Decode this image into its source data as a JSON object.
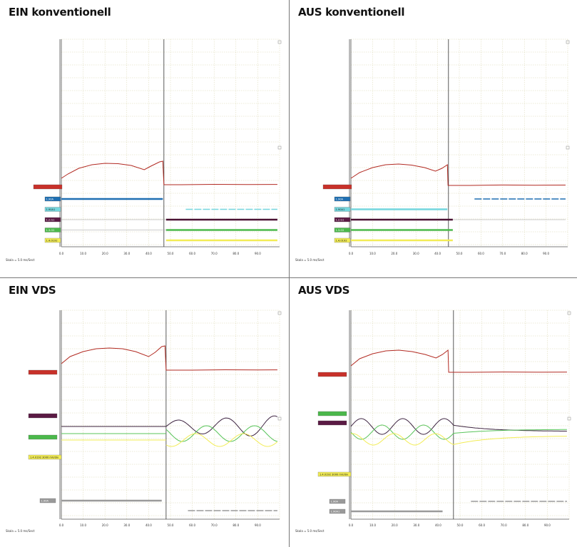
{
  "chart_data": [
    {
      "type": "line",
      "title": "EIN konventionell",
      "scale_note": "Skala = 5.0 ms/Sect",
      "x_ticks": [
        "0.0",
        "10.0",
        "20.0",
        "30.0",
        "40.0",
        "50.0",
        "60.0",
        "70.0",
        "80.0",
        "90.0"
      ],
      "analog": {
        "label": "",
        "color": "#b22a22",
        "labelColor": "#c8312a",
        "points": [
          [
            0,
            12
          ],
          [
            3,
            18
          ],
          [
            8,
            26
          ],
          [
            14,
            31
          ],
          [
            20,
            33
          ],
          [
            26,
            32.5
          ],
          [
            32,
            30
          ],
          [
            38,
            24
          ],
          [
            41,
            29
          ],
          [
            45,
            35
          ],
          [
            46.5,
            36
          ],
          [
            47,
            3
          ],
          [
            55,
            3
          ],
          [
            70,
            3.5
          ],
          [
            85,
            3.2
          ],
          [
            99,
            3.4
          ]
        ]
      },
      "traces": [
        {
          "label": "1.90A",
          "color": "#1f6fb2",
          "labelColor": "#1f6fb2",
          "segments": [
            [
              0,
              46.5
            ]
          ],
          "style": "solid"
        },
        {
          "label": "1.90A1",
          "color": "#74d6dd",
          "labelColor": "#74d6dd",
          "segments": [
            [
              57,
              99
            ]
          ],
          "style": "dashed"
        },
        {
          "label": "1.2.G1",
          "color": "#4a1233",
          "labelColor": "#5a1a44",
          "segments": [
            [
              48,
              99
            ]
          ],
          "style": "solid",
          "prefix": [
            0,
            48
          ]
        },
        {
          "label": "1.3.G2",
          "color": "#4bb84b",
          "labelColor": "#4bb84b",
          "segments": [
            [
              48,
              99
            ]
          ],
          "style": "solid",
          "prefix": [
            0,
            48
          ]
        },
        {
          "label": "1.4.0192",
          "color": "#f2ec55",
          "labelColor": "#f2ec55",
          "segments": [
            [
              48,
              99
            ]
          ],
          "style": "solid"
        }
      ],
      "cursor_x": 47
    },
    {
      "type": "line",
      "title": "AUS konventionell",
      "scale_note": "Skala = 5.0 ms/Sect",
      "x_ticks": [
        "0.0",
        "10.0",
        "20.0",
        "30.0",
        "40.0",
        "50.0",
        "60.0",
        "70.0",
        "80.0",
        "90.0"
      ],
      "analog": {
        "label": "",
        "color": "#b22a22",
        "labelColor": "#c8312a",
        "points": [
          [
            0,
            12
          ],
          [
            4,
            20
          ],
          [
            10,
            27
          ],
          [
            16,
            31
          ],
          [
            22,
            32
          ],
          [
            28,
            30.5
          ],
          [
            34,
            27
          ],
          [
            39,
            22
          ],
          [
            42,
            26
          ],
          [
            44.5,
            31
          ],
          [
            44.8,
            2
          ],
          [
            55,
            2
          ],
          [
            70,
            2.6
          ],
          [
            85,
            2.3
          ],
          [
            99,
            2.5
          ]
        ]
      },
      "traces": [
        {
          "label": "1.90A",
          "color": "#1f6fb2",
          "labelColor": "#1f6fb2",
          "segments": [
            [
              57,
              99
            ]
          ],
          "style": "dashed"
        },
        {
          "label": "1.90A1",
          "color": "#74d6dd",
          "labelColor": "#74d6dd",
          "segments": [
            [
              0,
              44.5
            ]
          ],
          "style": "solid"
        },
        {
          "label": "1.2.G1",
          "color": "#4a1233",
          "labelColor": "#5a1a44",
          "segments": [
            [
              0,
              47
            ]
          ],
          "style": "solid",
          "prefix": [
            47,
            99
          ]
        },
        {
          "label": "1.3.G2",
          "color": "#4bb84b",
          "labelColor": "#4bb84b",
          "segments": [
            [
              0,
              47
            ]
          ],
          "style": "solid"
        },
        {
          "label": "1.4.0192",
          "color": "#f2ec55",
          "labelColor": "#f2ec55",
          "segments": [
            [
              0,
              47
            ]
          ],
          "style": "solid"
        }
      ],
      "cursor_x": 45
    },
    {
      "type": "line",
      "title": "EIN VDS",
      "scale_note": "Skala = 5.0 ms/Sect",
      "x_ticks": [
        "0.0",
        "10.0",
        "20.0",
        "30.0",
        "40.0",
        "50.0",
        "60.0",
        "70.0",
        "80.0",
        "90.0"
      ],
      "analog_labels": [
        {
          "text": "",
          "color": "#c8312a"
        },
        {
          "text": "",
          "color": "#5a1a44"
        },
        {
          "text": "",
          "color": "#4bb84b"
        },
        {
          "text": "1.4.0192 3000 mV/div",
          "color": "#f2ec55"
        }
      ],
      "analog": {
        "label": "",
        "color": "#b22a22",
        "labelColor": "#c8312a",
        "points": [
          [
            0,
            12
          ],
          [
            4,
            22
          ],
          [
            10,
            29
          ],
          [
            16,
            33
          ],
          [
            22,
            34
          ],
          [
            28,
            33
          ],
          [
            34,
            29
          ],
          [
            40,
            22
          ],
          [
            43,
            28
          ],
          [
            46,
            36
          ],
          [
            47.5,
            37
          ],
          [
            48,
            3
          ],
          [
            60,
            3
          ],
          [
            75,
            3.5
          ],
          [
            90,
            3.2
          ],
          [
            99,
            3.4
          ]
        ]
      },
      "waves": [
        {
          "color": "#3d2340",
          "base": -15,
          "pre": [
            0,
            48
          ],
          "amp": 15,
          "period": 22,
          "phase": 0,
          "start": 48,
          "end": 99,
          "grow": true
        },
        {
          "color": "#58c45a",
          "base": -25,
          "pre": [
            0,
            48
          ],
          "amp": 11,
          "period": 22,
          "phase": 9,
          "start": 48,
          "end": 99,
          "grow": false
        },
        {
          "color": "#f2ec55",
          "base": -34,
          "pre": [
            0,
            48
          ],
          "amp": 9,
          "period": 22,
          "phase": 14,
          "start": 48,
          "end": 99,
          "grow": false
        }
      ],
      "traces": [
        {
          "label": "1.90A",
          "color": "#9a9a9a",
          "labelColor": "#9a9a9a",
          "segments": [
            [
              0,
              46
            ]
          ],
          "style": "solid"
        },
        {
          "label": "",
          "color": "#9a9a9a",
          "labelColor": "#9a9a9a",
          "segments": [
            [
              58,
              99
            ]
          ],
          "style": "dashed"
        }
      ],
      "cursor_x": 48
    },
    {
      "type": "line",
      "title": "AUS VDS",
      "scale_note": "Skala = 5.0 ms/Sect",
      "x_ticks": [
        "0.0",
        "10.0",
        "20.0",
        "30.0",
        "40.0",
        "50.0",
        "60.0",
        "70.0",
        "80.0",
        "90.0"
      ],
      "analog_labels": [
        {
          "text": "",
          "color": "#c8312a"
        },
        {
          "text": "",
          "color": "#4bb84b"
        },
        {
          "text": "",
          "color": "#5a1a44"
        },
        {
          "text": "1.4.0192 3000 mV/div",
          "color": "#f2ec55"
        }
      ],
      "analog": {
        "label": "",
        "color": "#b22a22",
        "labelColor": "#c8312a",
        "points": [
          [
            0,
            12
          ],
          [
            4,
            22
          ],
          [
            10,
            29
          ],
          [
            16,
            33
          ],
          [
            22,
            34
          ],
          [
            28,
            32
          ],
          [
            34,
            28
          ],
          [
            39,
            23
          ],
          [
            42,
            28
          ],
          [
            44.5,
            34
          ],
          [
            44.8,
            3
          ],
          [
            55,
            3
          ],
          [
            70,
            3.4
          ],
          [
            85,
            3.1
          ],
          [
            99,
            3.2
          ]
        ]
      },
      "waves_off": [
        {
          "color": "#3d2340",
          "base": -15,
          "amp": 11,
          "period": 19,
          "phase": 0,
          "end": 47,
          "decay_to": -22
        },
        {
          "color": "#58c45a",
          "base": -23,
          "amp": 10,
          "period": 19,
          "phase": 9.5,
          "end": 47,
          "decay_to": -19
        },
        {
          "color": "#f2ec55",
          "base": -33,
          "amp": 8,
          "period": 19,
          "phase": 4,
          "end": 47,
          "decay_to": -28
        }
      ],
      "traces": [
        {
          "label": "1.90A",
          "color": "#9a9a9a",
          "labelColor": "#9a9a9a",
          "segments": [
            [
              55,
              99
            ]
          ],
          "style": "dashed"
        },
        {
          "label": "1.90A1",
          "color": "#9a9a9a",
          "labelColor": "#9a9a9a",
          "segments": [
            [
              0,
              42
            ]
          ],
          "style": "solid"
        }
      ],
      "cursor_x": 47
    }
  ]
}
